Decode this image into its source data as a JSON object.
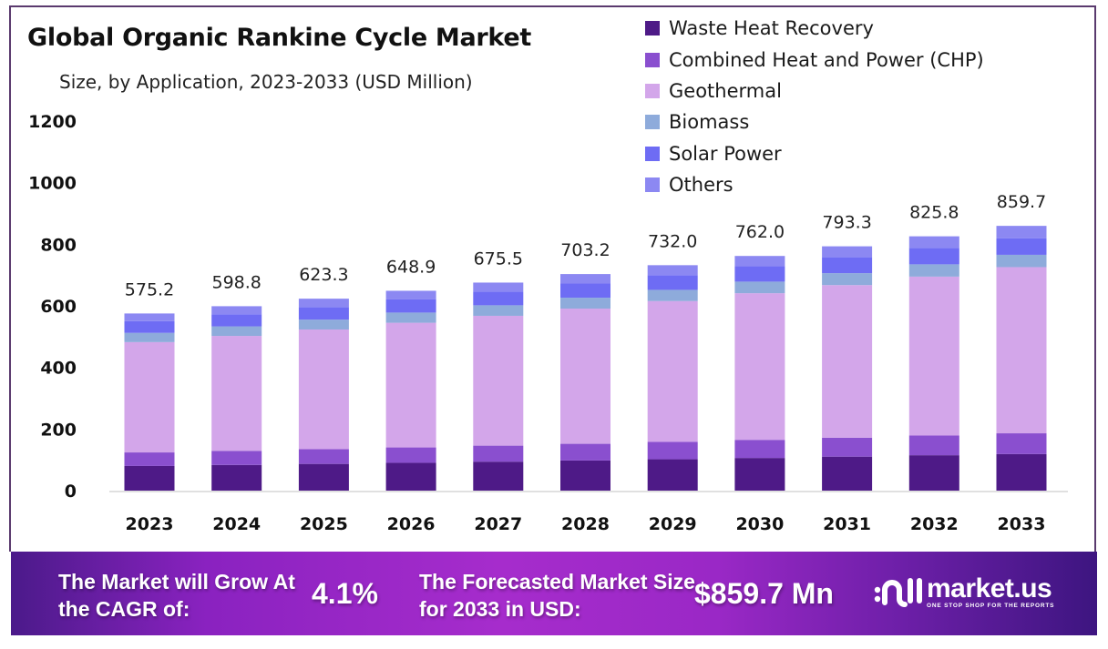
{
  "header": {
    "title": "Global Organic Rankine Cycle Market",
    "subtitle": "Size, by Application, 2023-2033 (USD Million)"
  },
  "legend": [
    {
      "label": "Waste Heat Recovery",
      "color": "#4e1a87"
    },
    {
      "label": "Combined Heat and Power (CHP)",
      "color": "#8a4fcf"
    },
    {
      "label": "Geothermal",
      "color": "#d3a6ea"
    },
    {
      "label": "Biomass",
      "color": "#8eabdb"
    },
    {
      "label": "Solar Power",
      "color": "#6e6cf4"
    },
    {
      "label": "Others",
      "color": "#8c88f2"
    }
  ],
  "chart_data": {
    "type": "bar",
    "stacked": true,
    "title": "Global Organic Rankine Cycle Market",
    "subtitle": "Size, by Application, 2023-2033 (USD Million)",
    "xlabel": "",
    "ylabel": "",
    "ylim": [
      0,
      1200
    ],
    "yticks": [
      0,
      200,
      400,
      600,
      800,
      1000,
      1200
    ],
    "grid": false,
    "legend_position": "top-right",
    "categories": [
      "2023",
      "2024",
      "2025",
      "2026",
      "2027",
      "2028",
      "2029",
      "2030",
      "2031",
      "2032",
      "2033"
    ],
    "totals": [
      575.2,
      598.8,
      623.3,
      648.9,
      675.5,
      703.2,
      732.0,
      762.0,
      793.3,
      825.8,
      859.7
    ],
    "total_labels": [
      "575.2",
      "598.8",
      "623.3",
      "648.9",
      "675.5",
      "703.2",
      "732.0",
      "762.0",
      "793.3",
      "825.8",
      "859.7"
    ],
    "series": [
      {
        "name": "Waste Heat Recovery",
        "color": "#4e1a87",
        "values": [
          80.0,
          83.3,
          86.7,
          90.3,
          94.0,
          97.8,
          101.8,
          106.0,
          110.3,
          114.9,
          118.6
        ]
      },
      {
        "name": "Combined Heat and Power (CHP)",
        "color": "#8a4fcf",
        "values": [
          44.0,
          45.9,
          47.9,
          49.9,
          52.0,
          54.2,
          56.5,
          58.9,
          61.4,
          64.0,
          67.5
        ]
      },
      {
        "name": "Geothermal",
        "color": "#d3a6ea",
        "values": [
          358.2,
          373.1,
          388.6,
          404.8,
          421.6,
          439.1,
          457.2,
          476.1,
          495.6,
          516.0,
          539.6
        ]
      },
      {
        "name": "Biomass",
        "color": "#8eabdb",
        "values": [
          30.0,
          31.0,
          32.0,
          33.1,
          34.2,
          35.3,
          36.4,
          37.6,
          38.8,
          39.9,
          40.0
        ]
      },
      {
        "name": "Solar Power",
        "color": "#6e6cf4",
        "values": [
          38.0,
          39.5,
          41.0,
          42.7,
          44.4,
          46.1,
          47.9,
          49.8,
          51.7,
          53.5,
          54.0
        ]
      },
      {
        "name": "Others",
        "color": "#8c88f2",
        "values": [
          25.0,
          26.0,
          27.1,
          28.1,
          29.3,
          30.7,
          32.2,
          33.6,
          35.5,
          37.5,
          40.0
        ]
      }
    ]
  },
  "banner": {
    "cagr_label": "The Market will Grow At the CAGR of:",
    "cagr_value": "4.1%",
    "forecast_label": "The Forecasted Market Size for 2033 in USD:",
    "forecast_value": "$859.7 Mn",
    "brand_name": "market.us",
    "brand_tagline": "ONE STOP SHOP FOR THE REPORTS"
  }
}
